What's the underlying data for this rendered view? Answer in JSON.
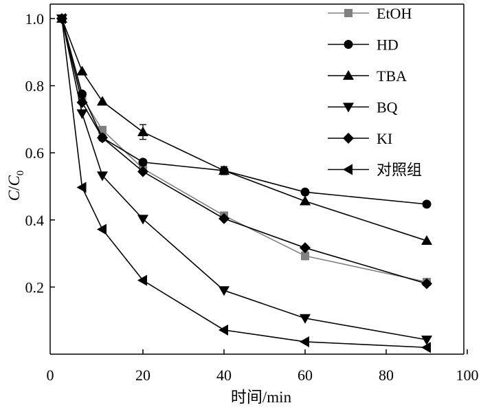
{
  "chart_data": {
    "type": "line",
    "xlabel": "时间/min",
    "ylabel": {
      "main": "C",
      "sep": "/",
      "sym": "C",
      "sub": "0"
    },
    "xlim": [
      0,
      100
    ],
    "ylim": [
      0,
      1.0
    ],
    "xticks": [
      "0",
      "20",
      "40",
      "60",
      "80",
      "100"
    ],
    "yticks": [
      "0.2",
      "0.4",
      "0.6",
      "0.8",
      "1.0"
    ],
    "grid": false,
    "legend_position": "top-right",
    "series": [
      {
        "name": "EtOH",
        "marker": "square",
        "color": "#808080",
        "x": [
          0,
          5,
          10,
          20,
          40,
          60,
          90
        ],
        "y": [
          1.0,
          0.765,
          0.668,
          0.553,
          0.413,
          0.293,
          0.215
        ],
        "error": [
          0,
          0,
          0,
          0,
          0.01,
          0.012,
          0
        ]
      },
      {
        "name": "HD",
        "marker": "circle",
        "color": "#000000",
        "x": [
          0,
          5,
          10,
          20,
          40,
          60,
          90
        ],
        "y": [
          1.0,
          0.775,
          0.645,
          0.572,
          0.547,
          0.483,
          0.447
        ],
        "error": [
          0,
          0,
          0,
          0,
          0,
          0,
          0
        ]
      },
      {
        "name": "TBA",
        "marker": "triangle-up",
        "color": "#000000",
        "x": [
          0,
          5,
          10,
          20,
          40,
          60,
          90
        ],
        "y": [
          1.0,
          0.843,
          0.753,
          0.662,
          0.547,
          0.456,
          0.338
        ],
        "error": [
          0,
          0,
          0,
          0.022,
          0.012,
          0,
          0
        ]
      },
      {
        "name": "BQ",
        "marker": "triangle-down",
        "color": "#000000",
        "x": [
          0,
          5,
          10,
          20,
          40,
          60,
          90
        ],
        "y": [
          1.0,
          0.717,
          0.532,
          0.403,
          0.19,
          0.107,
          0.043
        ],
        "error": [
          0,
          0,
          0,
          0,
          0,
          0,
          0
        ]
      },
      {
        "name": "KI",
        "marker": "diamond",
        "color": "#000000",
        "x": [
          0,
          5,
          10,
          20,
          40,
          60,
          90
        ],
        "y": [
          1.0,
          0.75,
          0.645,
          0.544,
          0.404,
          0.317,
          0.21
        ],
        "error": [
          0,
          0,
          0,
          0,
          0,
          0,
          0
        ]
      },
      {
        "name": "对照组",
        "marker": "triangle-left",
        "color": "#000000",
        "x": [
          0,
          5,
          10,
          20,
          40,
          60,
          90
        ],
        "y": [
          1.0,
          0.497,
          0.372,
          0.22,
          0.072,
          0.037,
          0.02
        ],
        "error": [
          0,
          0,
          0,
          0,
          0,
          0,
          0
        ]
      }
    ]
  }
}
